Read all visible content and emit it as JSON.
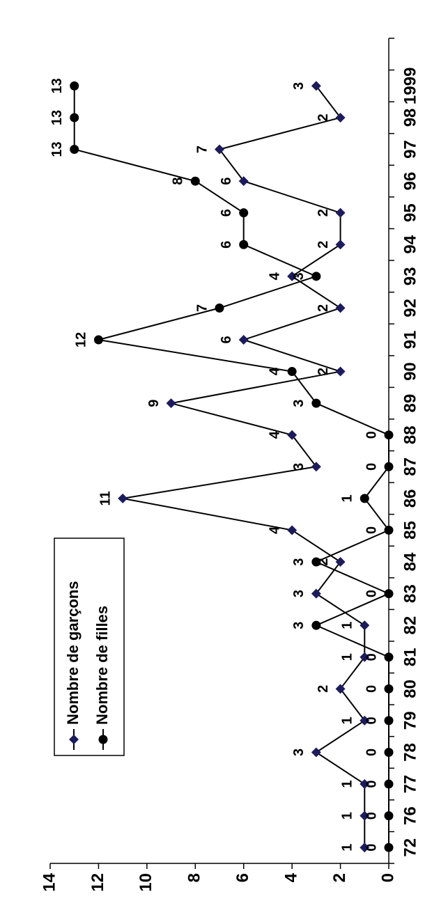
{
  "chart_data": {
    "type": "line",
    "categories": [
      "72",
      "76",
      "77",
      "78",
      "79",
      "80",
      "81",
      "82",
      "83",
      "84",
      "85",
      "86",
      "87",
      "88",
      "89",
      "90",
      "91",
      "92",
      "93",
      "94",
      "95",
      "96",
      "97",
      "98",
      "1999",
      null
    ],
    "series": [
      {
        "name": "Nombre de garçons",
        "color": "#000000",
        "marker": "diamond",
        "marker_color": "#1c1c5c",
        "values": [
          1,
          1,
          1,
          3,
          1,
          2,
          1,
          1,
          3,
          2,
          4,
          11,
          3,
          4,
          9,
          2,
          6,
          2,
          4,
          2,
          2,
          6,
          7,
          2,
          3,
          null
        ]
      },
      {
        "name": "Nombre de filles",
        "color": "#000000",
        "marker": "circle",
        "marker_color": "#000000",
        "values": [
          0,
          0,
          0,
          0,
          0,
          0,
          0,
          3,
          0,
          3,
          0,
          1,
          0,
          0,
          3,
          4,
          12,
          7,
          3,
          6,
          6,
          8,
          13,
          13,
          13,
          null
        ]
      }
    ],
    "ylim": [
      0,
      14
    ],
    "yticks": [
      0,
      2,
      4,
      6,
      8,
      10,
      12,
      14
    ],
    "rotation": -90,
    "legend": "upper left",
    "data_labels": true,
    "grid": false
  }
}
